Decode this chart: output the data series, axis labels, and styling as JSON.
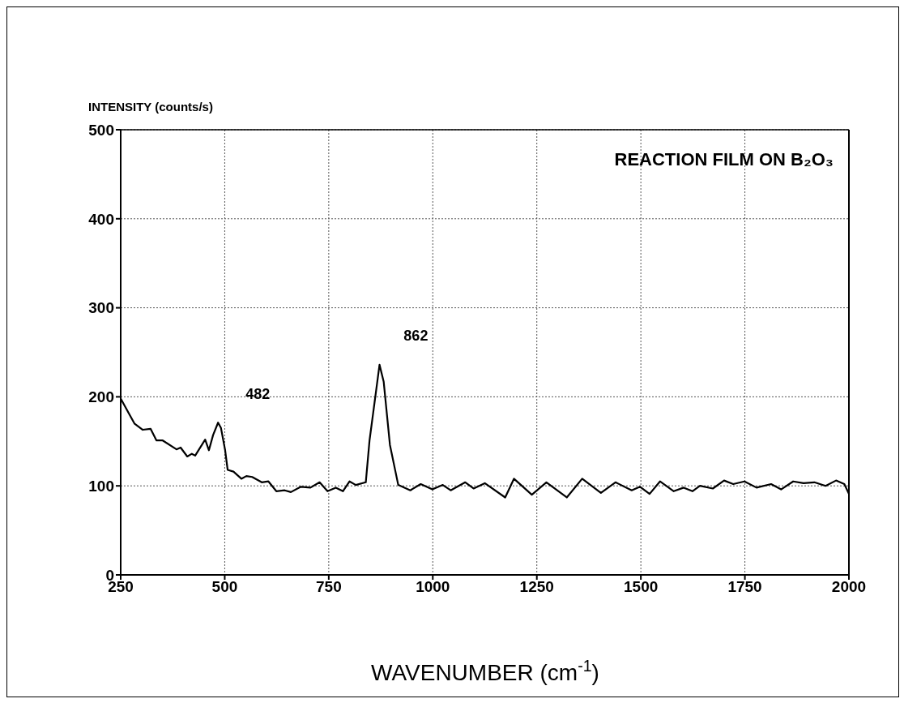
{
  "chart_data": {
    "type": "line",
    "title": "REACTION FILM ON B₂O₃",
    "xlabel": "WAVENUMBER (cm$^{-1}$)",
    "ylabel": "INTENSITY (counts/s)",
    "annotations": [
      {
        "text": "482",
        "x": 482,
        "y": 170
      },
      {
        "text": "862",
        "x": 862,
        "y": 236
      }
    ],
    "x": [
      250,
      283,
      303,
      322,
      336,
      351,
      384,
      394,
      410,
      421,
      429,
      453,
      462,
      472,
      484,
      491,
      501,
      507,
      521,
      540,
      552,
      566,
      589,
      605,
      624,
      644,
      659,
      683,
      706,
      728,
      747,
      767,
      784,
      800,
      815,
      839,
      848,
      872,
      882,
      897,
      917,
      946,
      971,
      999,
      1024,
      1043,
      1078,
      1098,
      1125,
      1174,
      1195,
      1238,
      1273,
      1322,
      1359,
      1404,
      1439,
      1478,
      1498,
      1521,
      1546,
      1579,
      1603,
      1624,
      1642,
      1673,
      1700,
      1722,
      1749,
      1778,
      1813,
      1837,
      1866,
      1891,
      1917,
      1944,
      1969,
      1989,
      2000
    ],
    "series": [
      {
        "color": "#000000",
        "values": [
          198,
          170,
          163,
          164,
          151,
          151,
          141,
          143,
          133,
          136,
          134,
          152,
          140,
          157,
          171,
          165,
          140,
          118,
          116,
          108,
          111,
          110,
          104,
          105,
          94,
          95,
          93,
          99,
          98,
          104,
          94,
          98,
          94,
          105,
          101,
          104,
          151,
          236,
          217,
          146,
          101,
          95,
          102,
          96,
          101,
          95,
          104,
          97,
          103,
          87,
          108,
          90,
          104,
          87,
          108,
          92,
          104,
          95,
          99,
          91,
          105,
          94,
          98,
          94,
          100,
          97,
          106,
          102,
          105,
          98,
          102,
          96,
          105,
          103,
          104,
          100,
          106,
          102,
          91
        ]
      }
    ],
    "xlim": [
      250,
      2000
    ],
    "xticks": [
      250,
      500,
      750,
      1000,
      1250,
      1500,
      1750,
      2000
    ],
    "ylim": [
      0,
      500
    ],
    "yticks": [
      0,
      100,
      200,
      300,
      400,
      500
    ],
    "grid": true,
    "marker": "none",
    "line_style": "solid"
  }
}
